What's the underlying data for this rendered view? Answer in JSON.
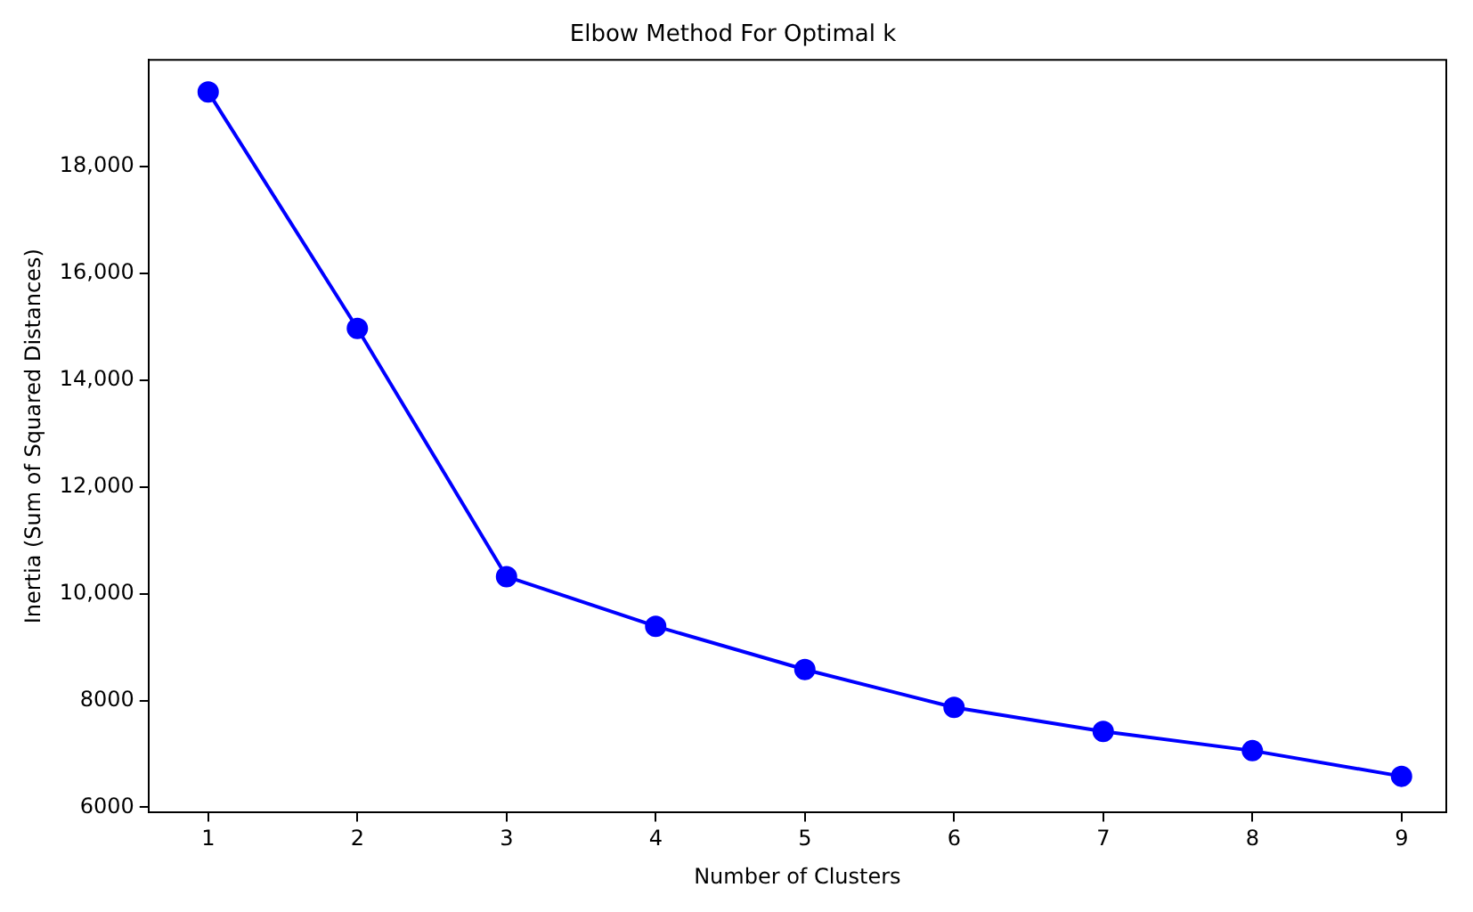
{
  "chart_data": {
    "type": "line",
    "title": "Elbow Method For Optimal k",
    "xlabel": "Number of Clusters",
    "ylabel": "Inertia (Sum of Squared Distances)",
    "x": [
      1,
      2,
      3,
      4,
      5,
      6,
      7,
      8,
      9
    ],
    "series": [
      {
        "color": "#0000ff",
        "values": [
          19400,
          14970,
          10320,
          9390,
          8580,
          7870,
          7420,
          7060,
          6580
        ]
      }
    ],
    "xlim": [
      0.6,
      9.3
    ],
    "xticks": [
      1,
      2,
      3,
      4,
      5,
      6,
      7,
      8,
      9
    ],
    "ylim": [
      5900,
      20000
    ],
    "yticks": [
      6000,
      8000,
      {
        "value": 10000,
        "label": "10,000"
      },
      {
        "value": 12000,
        "label": "12,000"
      },
      {
        "value": 14000,
        "label": "14,000"
      },
      {
        "value": 16000,
        "label": "16,000"
      },
      {
        "value": 18000,
        "label": "18,000"
      }
    ],
    "marker": "circle",
    "line_style": "solid",
    "grid": false,
    "legend": false
  }
}
